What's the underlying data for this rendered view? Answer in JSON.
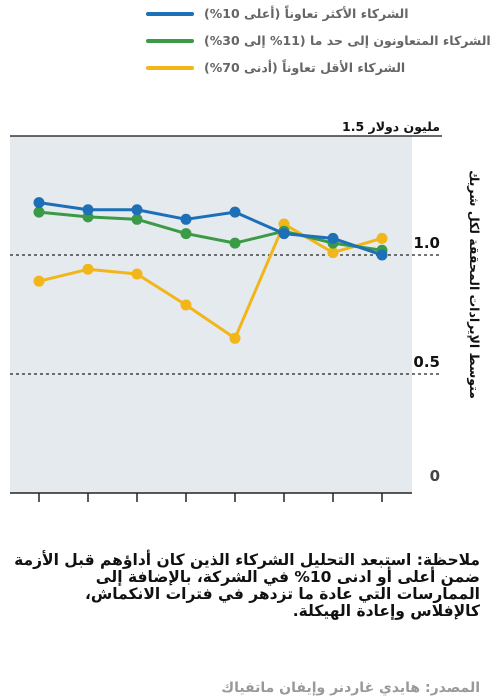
{
  "legend": [
    {
      "label": "الشركاء الأكثر تعاوناً (أعلى 10%)",
      "color": "#1d6fb8"
    },
    {
      "label": "الشركاء المتعاونون إلى حد ما (11% إلى 30%)",
      "color": "#3a9a46"
    },
    {
      "label": "الشركاء الأقل تعاوناً (أدنى 70%)",
      "color": "#f2b61a"
    }
  ],
  "chart_data": {
    "type": "line",
    "x": [
      1,
      2,
      3,
      4,
      5,
      6,
      7,
      8
    ],
    "series": [
      {
        "name": "الشركاء الأكثر تعاوناً (أعلى 10%)",
        "color": "#1d6fb8",
        "values": [
          1.22,
          1.19,
          1.19,
          1.15,
          1.18,
          1.09,
          1.07,
          1.0
        ]
      },
      {
        "name": "الشركاء المتعاونون إلى حد ما (11% إلى 30%)",
        "color": "#3a9a46",
        "values": [
          1.18,
          1.16,
          1.15,
          1.09,
          1.05,
          1.1,
          1.05,
          1.02
        ]
      },
      {
        "name": "الشركاء الأقل تعاوناً (أدنى 70%)",
        "color": "#f2b61a",
        "values": [
          0.89,
          0.94,
          0.92,
          0.79,
          0.65,
          1.13,
          1.01,
          1.07
        ]
      }
    ],
    "yticks": [
      {
        "value": 1.5,
        "label": "1.5 مليون دولار"
      },
      {
        "value": 1.0,
        "label": "1.0"
      },
      {
        "value": 0.5,
        "label": "0.5"
      },
      {
        "value": 0,
        "label": "0"
      }
    ],
    "ylabel": "متوسط الإيرادات المحققة لكل شريك",
    "ylim": [
      0,
      1.5
    ],
    "plot_background": "#e4eaee"
  },
  "note": "ملاحظة: استبعد التحليل الشركاء الذين كان أداؤهم قبل الأزمة ضمن أعلى أو ادنى 10% في الشركة، بالإضافة إلى الممارسات التي عادة ما تزدهر في فترات الانكماش، كالإفلاس وإعادة الهيكلة.",
  "source": "المصدر: هايدي غاردنر وإيفان ماتفياك"
}
